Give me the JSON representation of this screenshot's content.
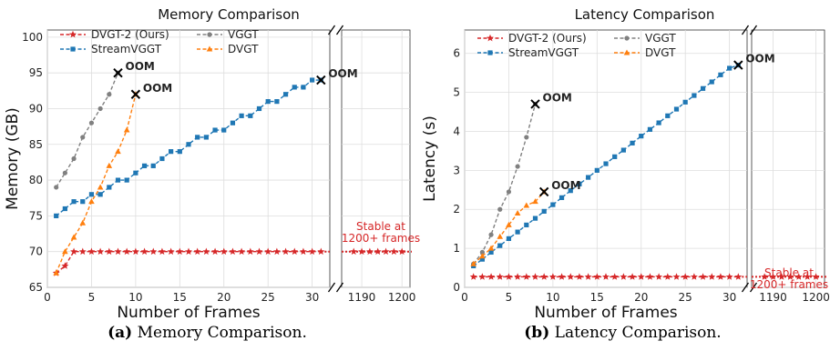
{
  "captions": [
    {
      "label": "(a)",
      "text": "Memory Comparison."
    },
    {
      "label": "(b)",
      "text": "Latency Comparison."
    }
  ],
  "colors": {
    "dvgt2": "#d62728",
    "vggt": "#808080",
    "streamvggt": "#1f77b4",
    "dvgt": "#ff7f0e",
    "oom_marker": "#000000",
    "grid": "#dddddd",
    "panel": "#ffffff"
  },
  "chart_data": [
    {
      "type": "line",
      "title": "Memory Comparison",
      "xlabel": "Number of Frames",
      "ylabel": "Memory (GB)",
      "ylim": [
        65,
        101
      ],
      "yticks": [
        65,
        70,
        75,
        80,
        85,
        90,
        95,
        100
      ],
      "xlim_main": [
        0,
        32
      ],
      "xticks_main": [
        0,
        5,
        10,
        15,
        20,
        25,
        30
      ],
      "xlim_tail": [
        1185,
        1202
      ],
      "xticks_tail": [
        1190,
        1200
      ],
      "legend_position": "top-left",
      "legend_columns": 2,
      "grid": true,
      "series": [
        {
          "name": "DVGT-2 (Ours)",
          "color_key": "dvgt2",
          "marker": "star",
          "x": [
            1,
            2,
            3,
            4,
            5,
            6,
            7,
            8,
            9,
            10,
            11,
            12,
            13,
            14,
            15,
            16,
            17,
            18,
            19,
            20,
            21,
            22,
            23,
            24,
            25,
            26,
            27,
            28,
            29,
            30,
            31
          ],
          "y": [
            67,
            68,
            70,
            70,
            70,
            70,
            70,
            70,
            70,
            70,
            70,
            70,
            70,
            70,
            70,
            70,
            70,
            70,
            70,
            70,
            70,
            70,
            70,
            70,
            70,
            70,
            70,
            70,
            70,
            70,
            70
          ],
          "tail_x": [
            1188,
            1190,
            1192,
            1194,
            1196,
            1198,
            1200
          ],
          "tail_y": [
            70,
            70,
            70,
            70,
            70,
            70,
            70
          ]
        },
        {
          "name": "VGGT",
          "color_key": "vggt",
          "marker": "circle",
          "x": [
            1,
            2,
            3,
            4,
            5,
            6,
            7,
            8
          ],
          "y": [
            79,
            81,
            83,
            86,
            88,
            90,
            92,
            95
          ]
        },
        {
          "name": "StreamVGGT",
          "color_key": "streamvggt",
          "marker": "square",
          "x": [
            1,
            2,
            3,
            4,
            5,
            6,
            7,
            8,
            9,
            10,
            11,
            12,
            13,
            14,
            15,
            16,
            17,
            18,
            19,
            20,
            21,
            22,
            23,
            24,
            25,
            26,
            27,
            28,
            29,
            30,
            31
          ],
          "y": [
            75,
            76,
            77,
            77,
            78,
            78,
            79,
            80,
            80,
            81,
            82,
            82,
            83,
            84,
            84,
            85,
            86,
            86,
            87,
            87,
            88,
            89,
            89,
            90,
            91,
            91,
            92,
            93,
            93,
            94,
            94
          ]
        },
        {
          "name": "DVGT",
          "color_key": "dvgt",
          "marker": "triangle",
          "x": [
            1,
            2,
            3,
            4,
            5,
            6,
            7,
            8,
            9,
            10
          ],
          "y": [
            67,
            70,
            72,
            74,
            77,
            79,
            82,
            84,
            87,
            92
          ]
        }
      ],
      "oom": [
        {
          "x": 8,
          "y": 95,
          "label": "OOM"
        },
        {
          "x": 10,
          "y": 92,
          "label": "OOM"
        },
        {
          "x": 31,
          "y": 94,
          "label": "OOM"
        }
      ],
      "annotation": {
        "lines": [
          "Stable at",
          "1200+ frames"
        ],
        "color_key": "dvgt2"
      }
    },
    {
      "type": "line",
      "title": "Latency Comparison",
      "xlabel": "Number of Frames",
      "ylabel": "Latency (s)",
      "ylim": [
        0,
        6.6
      ],
      "yticks": [
        0,
        1,
        2,
        3,
        4,
        5,
        6
      ],
      "xlim_main": [
        0,
        32
      ],
      "xticks_main": [
        0,
        5,
        10,
        15,
        20,
        25,
        30
      ],
      "xlim_tail": [
        1185,
        1202
      ],
      "xticks_tail": [
        1190,
        1200
      ],
      "legend_position": "top-left",
      "legend_columns": 2,
      "grid": true,
      "series": [
        {
          "name": "DVGT-2 (Ours)",
          "color_key": "dvgt2",
          "marker": "star",
          "x": [
            1,
            2,
            3,
            4,
            5,
            6,
            7,
            8,
            9,
            10,
            11,
            12,
            13,
            14,
            15,
            16,
            17,
            18,
            19,
            20,
            21,
            22,
            23,
            24,
            25,
            26,
            27,
            28,
            29,
            30,
            31
          ],
          "y": [
            0.27,
            0.27,
            0.27,
            0.27,
            0.27,
            0.27,
            0.27,
            0.27,
            0.27,
            0.27,
            0.27,
            0.27,
            0.27,
            0.27,
            0.27,
            0.27,
            0.27,
            0.27,
            0.27,
            0.27,
            0.27,
            0.27,
            0.27,
            0.27,
            0.27,
            0.27,
            0.27,
            0.27,
            0.27,
            0.27,
            0.27
          ],
          "tail_x": [
            1188,
            1190,
            1192,
            1194,
            1196,
            1198,
            1200
          ],
          "tail_y": [
            0.27,
            0.27,
            0.27,
            0.27,
            0.27,
            0.27,
            0.27
          ]
        },
        {
          "name": "VGGT",
          "color_key": "vggt",
          "marker": "circle",
          "x": [
            1,
            2,
            3,
            4,
            5,
            6,
            7,
            8
          ],
          "y": [
            0.6,
            0.9,
            1.35,
            2.0,
            2.45,
            3.1,
            3.85,
            4.7
          ]
        },
        {
          "name": "StreamVGGT",
          "color_key": "streamvggt",
          "marker": "square",
          "x": [
            1,
            2,
            3,
            4,
            5,
            6,
            7,
            8,
            9,
            10,
            11,
            12,
            13,
            14,
            15,
            16,
            17,
            18,
            19,
            20,
            21,
            22,
            23,
            24,
            25,
            26,
            27,
            28,
            29,
            30,
            31
          ],
          "y": [
            0.55,
            0.72,
            0.9,
            1.07,
            1.25,
            1.42,
            1.6,
            1.77,
            1.95,
            2.12,
            2.3,
            2.48,
            2.65,
            2.82,
            3.0,
            3.17,
            3.35,
            3.52,
            3.7,
            3.88,
            4.05,
            4.22,
            4.4,
            4.57,
            4.75,
            4.92,
            5.1,
            5.27,
            5.45,
            5.62,
            5.7
          ]
        },
        {
          "name": "DVGT",
          "color_key": "dvgt",
          "marker": "triangle",
          "x": [
            1,
            2,
            3,
            4,
            5,
            6,
            7,
            8,
            9
          ],
          "y": [
            0.6,
            0.8,
            1.0,
            1.3,
            1.6,
            1.9,
            2.1,
            2.2,
            2.45
          ]
        }
      ],
      "oom": [
        {
          "x": 8,
          "y": 4.7,
          "label": "OOM"
        },
        {
          "x": 9,
          "y": 2.45,
          "label": "OOM"
        },
        {
          "x": 31,
          "y": 5.7,
          "label": "OOM"
        }
      ],
      "annotation": {
        "lines": [
          "Stable at",
          "1200+ frames"
        ],
        "color_key": "dvgt2"
      }
    }
  ]
}
